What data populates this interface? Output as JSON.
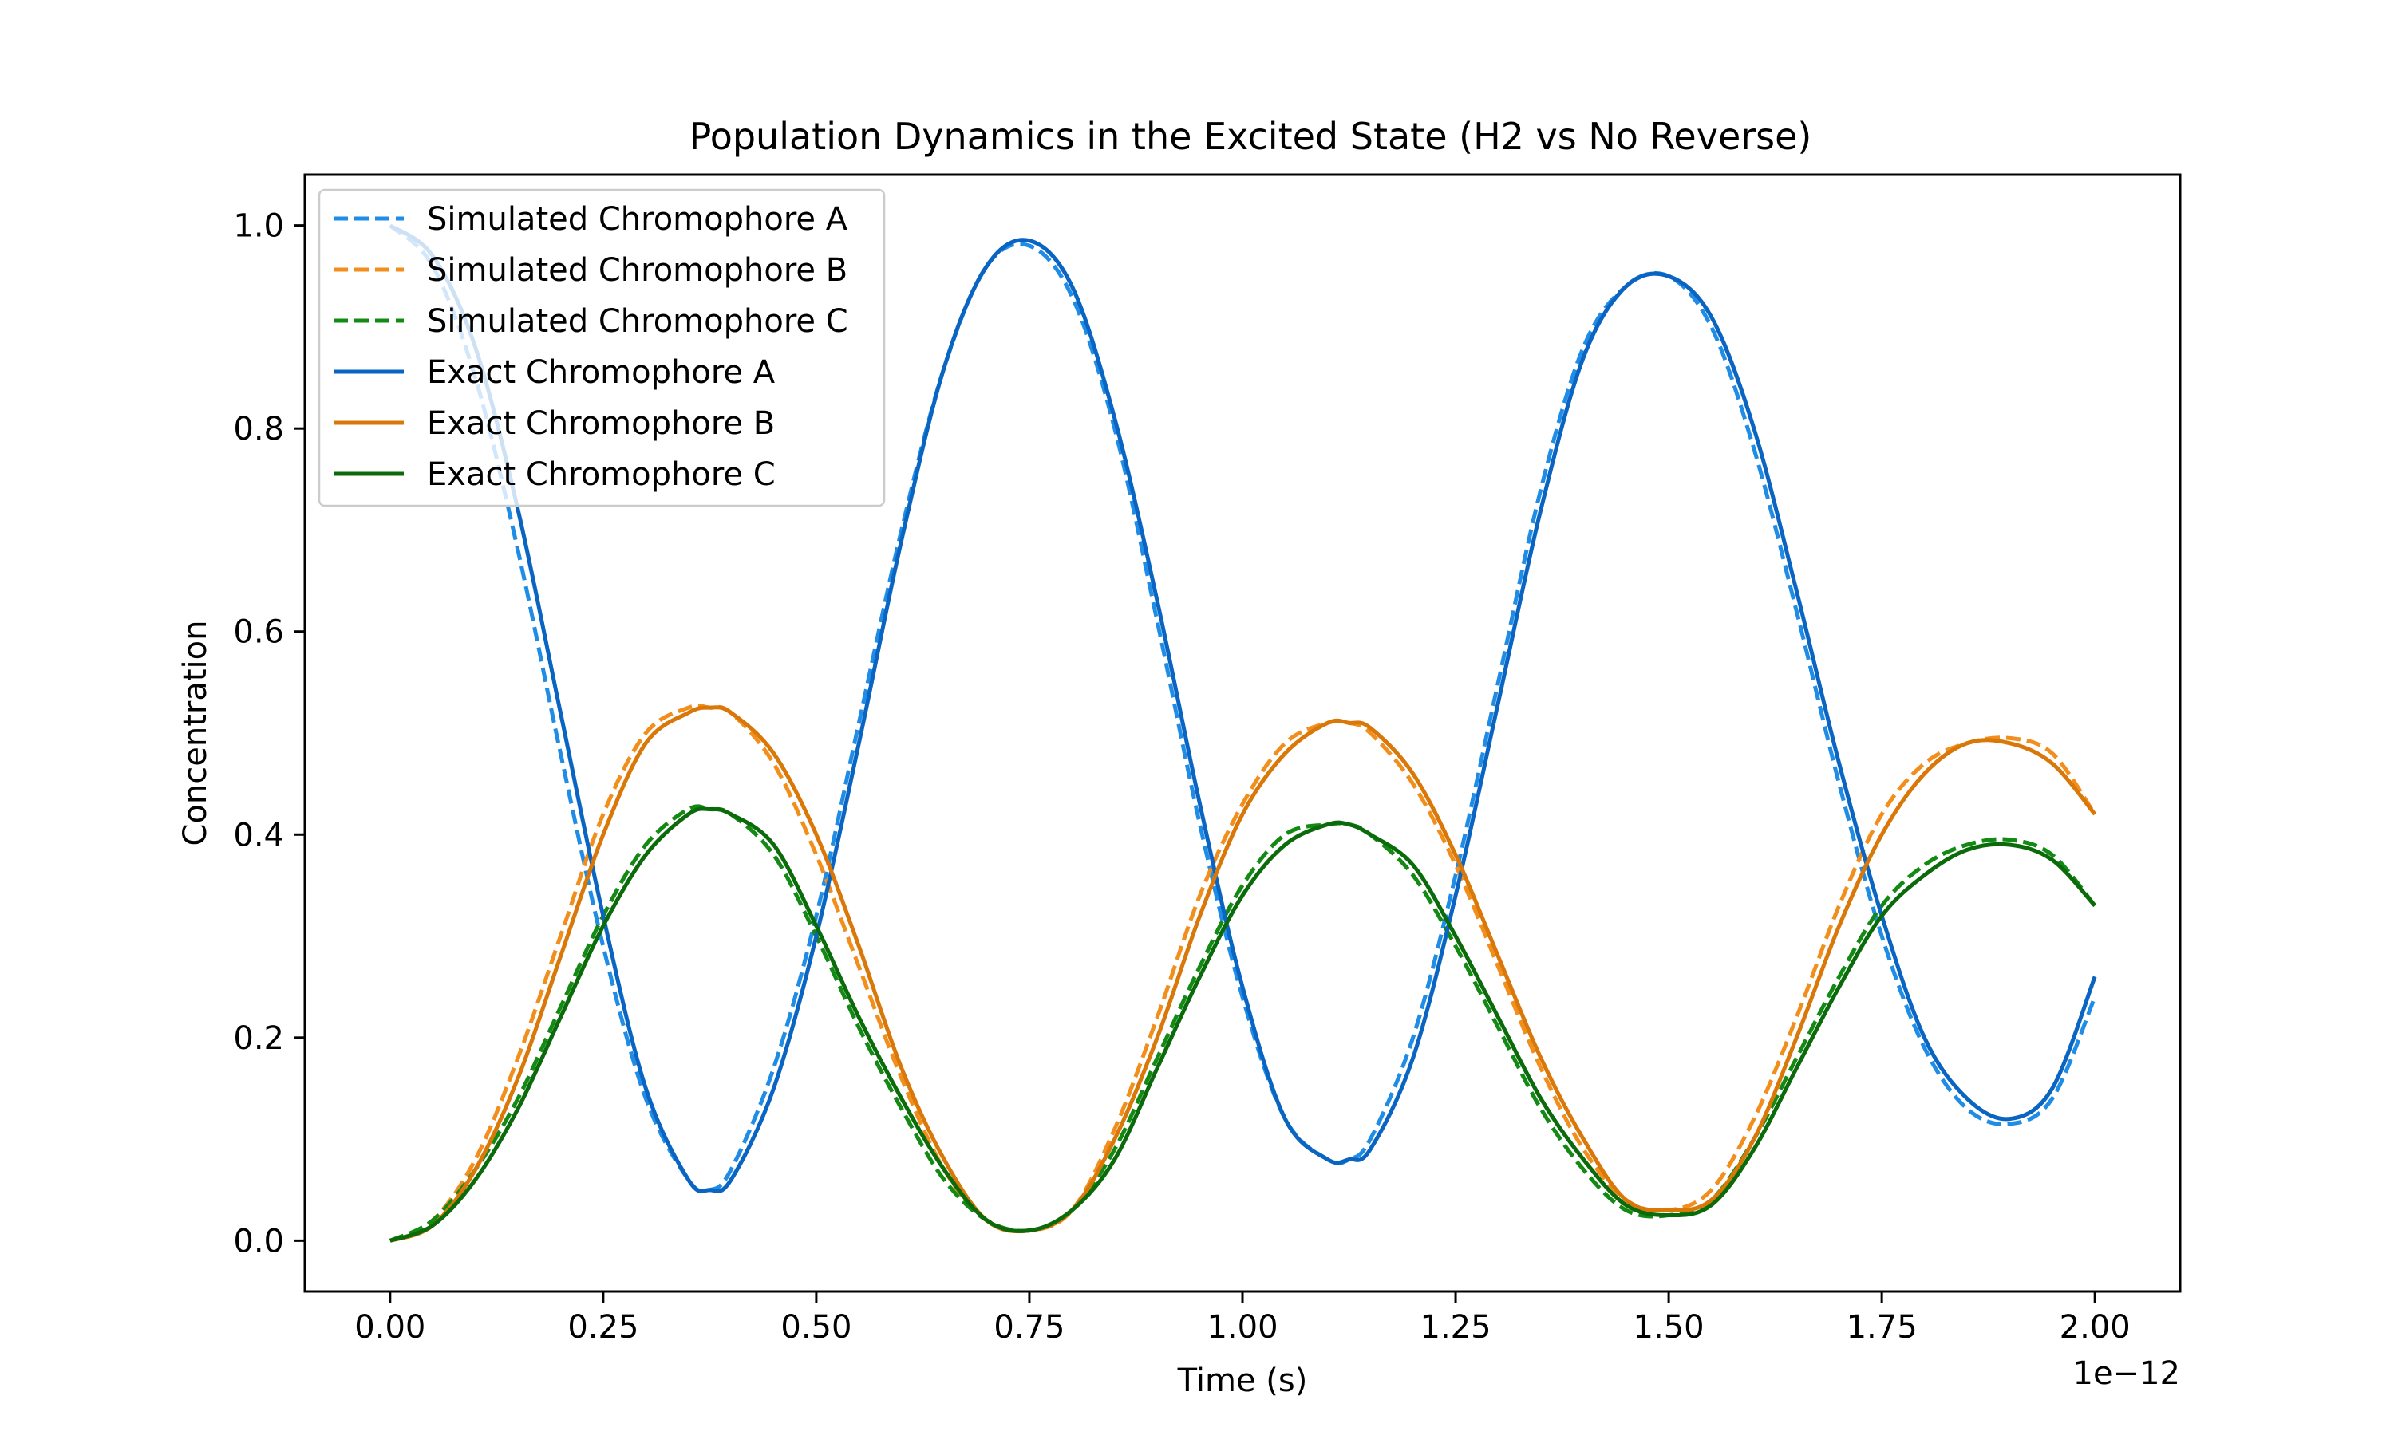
{
  "chart_data": {
    "type": "line",
    "title": "Population Dynamics in the Excited State (H2 vs No Reverse)",
    "xlabel": "Time (s)",
    "ylabel": "Concentration",
    "x_offset_label": "1e−12",
    "xlim": [
      -0.1,
      2.1
    ],
    "ylim": [
      -0.05,
      1.05
    ],
    "x_ticks": [
      0.0,
      0.25,
      0.5,
      0.75,
      1.0,
      1.25,
      1.5,
      1.75,
      2.0
    ],
    "x_tick_labels": [
      "0.00",
      "0.25",
      "0.50",
      "0.75",
      "1.00",
      "1.25",
      "1.50",
      "1.75",
      "2.00"
    ],
    "y_ticks": [
      0.0,
      0.2,
      0.4,
      0.6,
      0.8,
      1.0
    ],
    "y_tick_labels": [
      "0.0",
      "0.2",
      "0.4",
      "0.6",
      "0.8",
      "1.0"
    ],
    "grid": false,
    "legend_position": "upper-left",
    "x": [
      0.0,
      0.05,
      0.1,
      0.15,
      0.2,
      0.25,
      0.3,
      0.35,
      0.375,
      0.4,
      0.45,
      0.5,
      0.55,
      0.6,
      0.65,
      0.7,
      0.75,
      0.8,
      0.85,
      0.9,
      0.95,
      1.0,
      1.05,
      1.1,
      1.125,
      1.15,
      1.2,
      1.25,
      1.3,
      1.35,
      1.4,
      1.45,
      1.5,
      1.55,
      1.6,
      1.65,
      1.7,
      1.75,
      1.8,
      1.85,
      1.9,
      1.95,
      2.0
    ],
    "series": [
      {
        "name": "Simulated Chromophore A",
        "style": "dashed",
        "color": "#1f8ce6",
        "values": [
          1.0,
          0.96,
          0.85,
          0.68,
          0.48,
          0.29,
          0.14,
          0.06,
          0.05,
          0.07,
          0.17,
          0.32,
          0.51,
          0.7,
          0.86,
          0.96,
          0.98,
          0.93,
          0.8,
          0.61,
          0.41,
          0.24,
          0.12,
          0.08,
          0.08,
          0.1,
          0.2,
          0.36,
          0.55,
          0.74,
          0.88,
          0.94,
          0.95,
          0.9,
          0.78,
          0.62,
          0.45,
          0.3,
          0.19,
          0.13,
          0.115,
          0.14,
          0.24
        ]
      },
      {
        "name": "Simulated Chromophore B",
        "style": "dashed",
        "color": "#f28e1c",
        "values": [
          0.0,
          0.02,
          0.08,
          0.18,
          0.3,
          0.42,
          0.5,
          0.525,
          0.525,
          0.52,
          0.47,
          0.38,
          0.27,
          0.16,
          0.07,
          0.02,
          0.01,
          0.03,
          0.11,
          0.22,
          0.34,
          0.43,
          0.49,
          0.51,
          0.51,
          0.5,
          0.45,
          0.37,
          0.27,
          0.17,
          0.09,
          0.04,
          0.03,
          0.05,
          0.12,
          0.22,
          0.33,
          0.42,
          0.47,
          0.49,
          0.495,
          0.48,
          0.42
        ]
      },
      {
        "name": "Simulated Chromophore C",
        "style": "dashed",
        "color": "#138a13",
        "values": [
          0.0,
          0.02,
          0.07,
          0.14,
          0.23,
          0.32,
          0.39,
          0.425,
          0.425,
          0.42,
          0.38,
          0.3,
          0.21,
          0.13,
          0.06,
          0.02,
          0.01,
          0.03,
          0.09,
          0.18,
          0.27,
          0.35,
          0.4,
          0.41,
          0.41,
          0.4,
          0.36,
          0.29,
          0.21,
          0.13,
          0.07,
          0.03,
          0.025,
          0.04,
          0.1,
          0.18,
          0.26,
          0.33,
          0.37,
          0.39,
          0.395,
          0.38,
          0.33
        ]
      },
      {
        "name": "Exact Chromophore A",
        "style": "solid",
        "color": "#0a64c2",
        "values": [
          1.0,
          0.97,
          0.88,
          0.72,
          0.52,
          0.32,
          0.15,
          0.06,
          0.05,
          0.06,
          0.15,
          0.3,
          0.49,
          0.69,
          0.86,
          0.96,
          0.985,
          0.94,
          0.81,
          0.63,
          0.43,
          0.25,
          0.12,
          0.08,
          0.08,
          0.09,
          0.18,
          0.34,
          0.53,
          0.72,
          0.87,
          0.94,
          0.95,
          0.91,
          0.8,
          0.64,
          0.47,
          0.32,
          0.2,
          0.14,
          0.12,
          0.15,
          0.26
        ]
      },
      {
        "name": "Exact Chromophore B",
        "style": "solid",
        "color": "#d97809",
        "values": [
          0.0,
          0.015,
          0.07,
          0.16,
          0.28,
          0.4,
          0.49,
          0.52,
          0.525,
          0.52,
          0.48,
          0.4,
          0.29,
          0.17,
          0.08,
          0.02,
          0.01,
          0.03,
          0.1,
          0.2,
          0.32,
          0.42,
          0.48,
          0.51,
          0.51,
          0.505,
          0.46,
          0.38,
          0.28,
          0.18,
          0.1,
          0.04,
          0.03,
          0.04,
          0.1,
          0.2,
          0.31,
          0.4,
          0.46,
          0.49,
          0.49,
          0.47,
          0.42
        ]
      },
      {
        "name": "Exact Chromophore C",
        "style": "solid",
        "color": "#0b6b0b",
        "values": [
          0.0,
          0.015,
          0.06,
          0.13,
          0.22,
          0.31,
          0.38,
          0.42,
          0.425,
          0.42,
          0.39,
          0.31,
          0.22,
          0.14,
          0.07,
          0.02,
          0.01,
          0.03,
          0.08,
          0.17,
          0.26,
          0.34,
          0.39,
          0.41,
          0.41,
          0.4,
          0.37,
          0.3,
          0.22,
          0.14,
          0.08,
          0.035,
          0.025,
          0.035,
          0.09,
          0.17,
          0.25,
          0.32,
          0.36,
          0.385,
          0.39,
          0.375,
          0.33
        ]
      }
    ]
  }
}
